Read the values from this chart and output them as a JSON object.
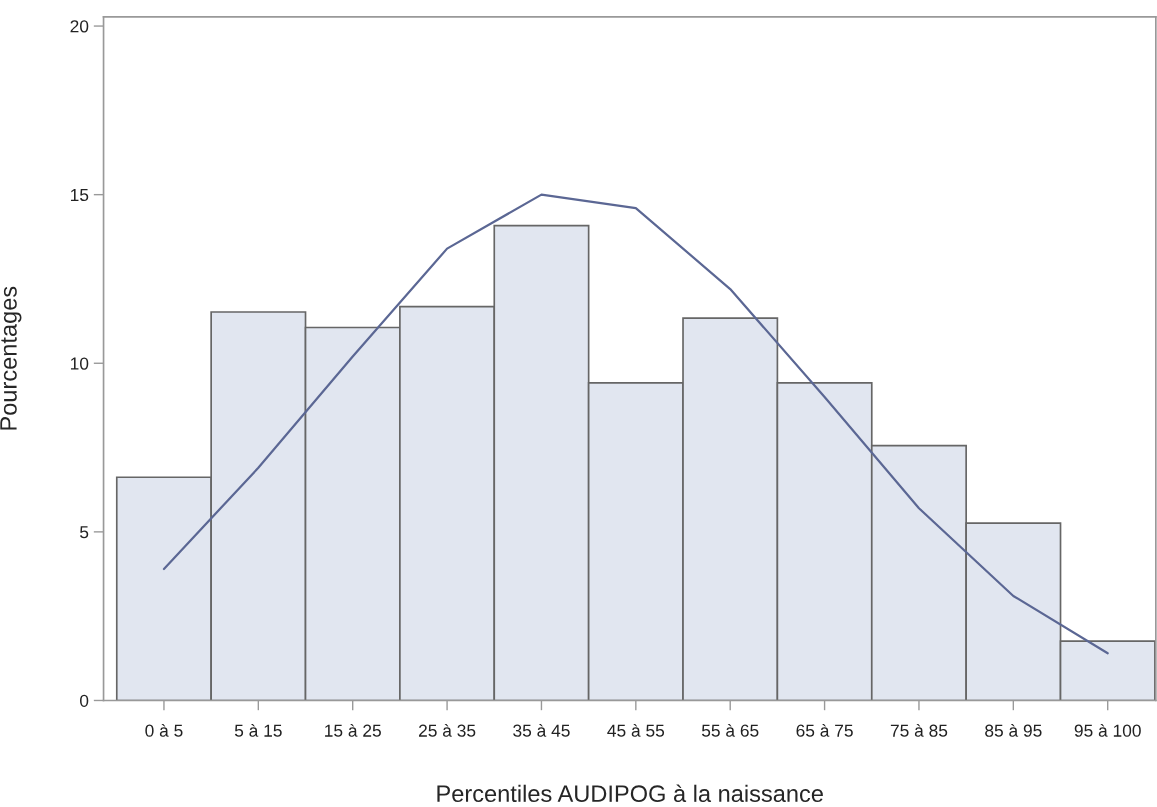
{
  "chart_data": {
    "type": "bar",
    "xlabel": "Percentiles AUDIPOG à la naissance",
    "ylabel": "Pourcentages",
    "categories": [
      "0 à 5",
      "5 à 15",
      "15 à 25",
      "25 à 35",
      "35 à 45",
      "45 à 55",
      "55 à 65",
      "65 à 75",
      "75 à 85",
      "85 à 95",
      "95 à 100"
    ],
    "series": [
      {
        "color": "#e1e6f0",
        "values": [
          6.62,
          11.52,
          11.06,
          11.68,
          14.08,
          9.42,
          11.34,
          9.42,
          7.56,
          5.26,
          1.76
        ]
      },
      {
        "type": "line",
        "color": "#5b6794",
        "values": [
          3.9,
          6.9,
          10.2,
          13.4,
          15.0,
          14.6,
          12.2,
          9.0,
          5.7,
          3.1,
          1.4
        ]
      }
    ],
    "ylim": [
      0,
      20.27
    ],
    "yticks": [
      0,
      5,
      10,
      15,
      20
    ],
    "grid": false,
    "legend": false,
    "marker": "none",
    "line_style": "solid"
  }
}
